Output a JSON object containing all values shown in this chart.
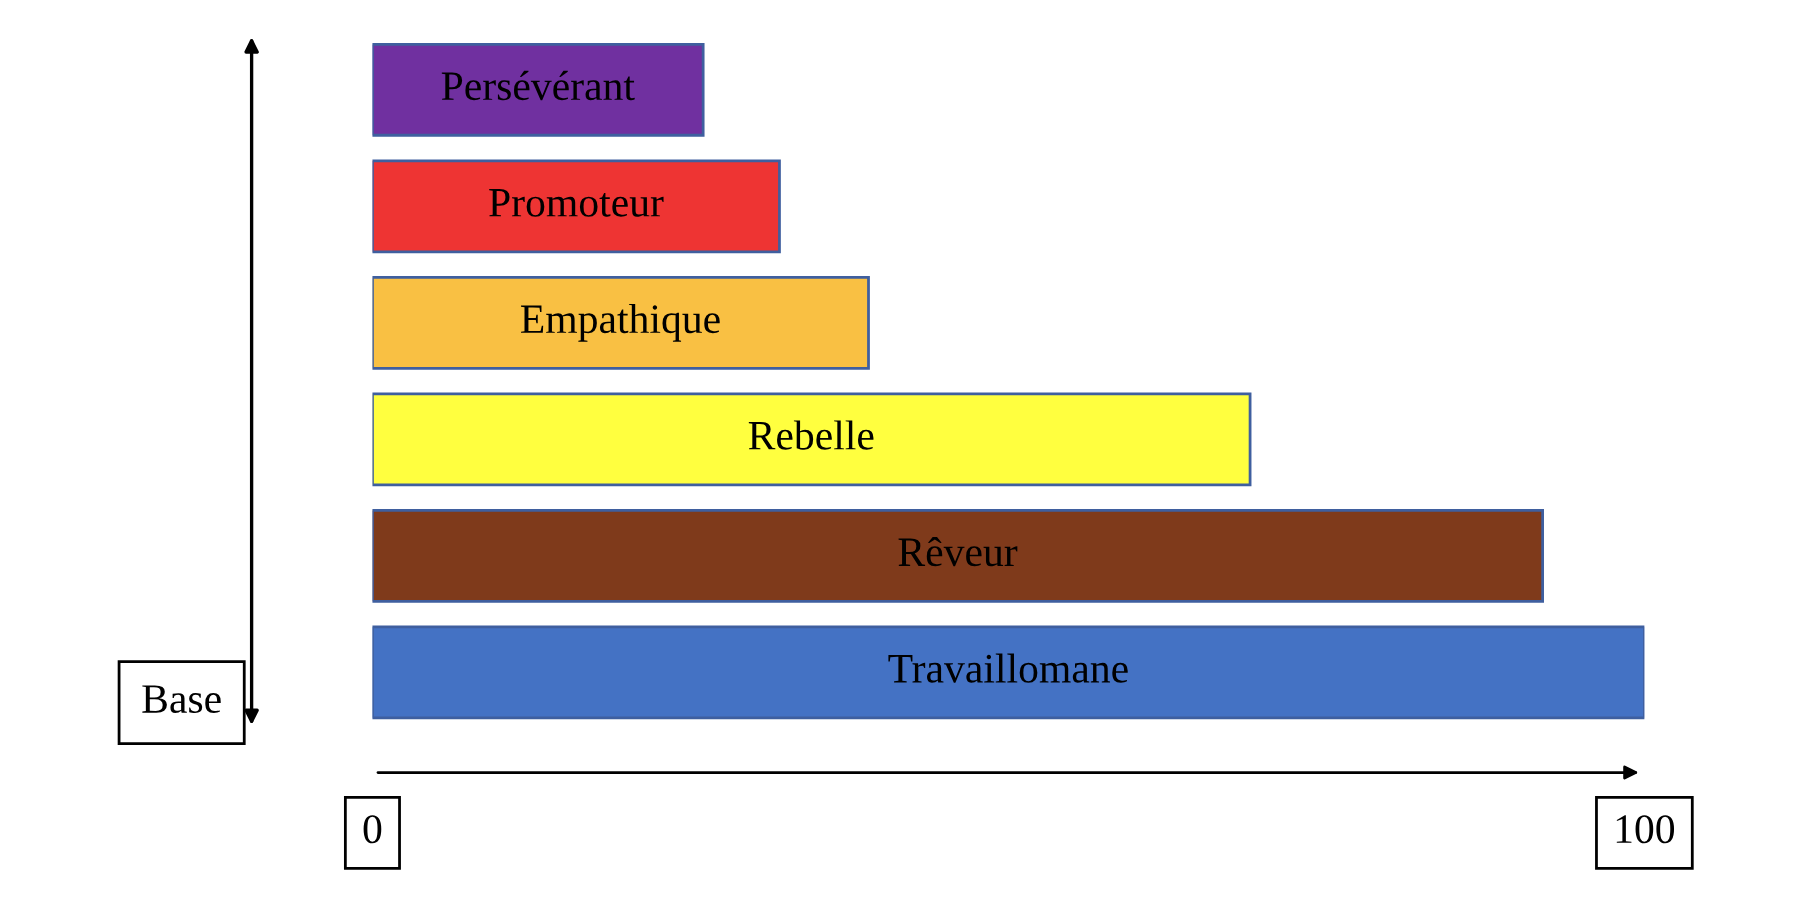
{
  "chart_data": {
    "type": "bar",
    "orientation": "horizontal",
    "ylabel": "Base",
    "categories": [
      "Persévérant",
      "Promoteur",
      "Empathique",
      "Rebelle",
      "Rêveur",
      "Travaillomane"
    ],
    "values": [
      26,
      32,
      39,
      69,
      92,
      100
    ],
    "colors": [
      "#7030a0",
      "#ee3433",
      "#f9c043",
      "#ffff3f",
      "#7f3a1b",
      "#4472c4"
    ],
    "xlim": [
      0,
      100
    ],
    "xticks": [
      0,
      100
    ],
    "grid": false,
    "legend": false
  }
}
